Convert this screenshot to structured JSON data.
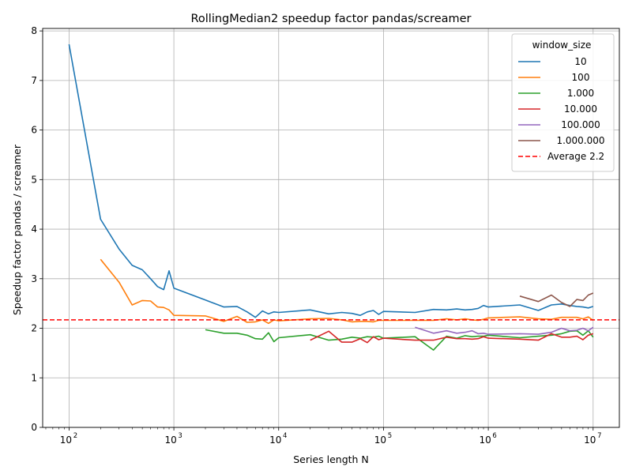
{
  "chart_data": {
    "type": "line",
    "title": "RollingMedian2 speedup factor pandas/screamer",
    "xlabel": "Series length N",
    "ylabel": "Speedup factor pandas / screamer",
    "xscale": "log",
    "xlim": [
      56,
      17800000
    ],
    "ylim": [
      0,
      8.05
    ],
    "grid": true,
    "legend_title": "window_size",
    "legend_position": "top-right",
    "x_ticks": [
      {
        "value": 100,
        "base": "10",
        "exp": "2"
      },
      {
        "value": 1000,
        "base": "10",
        "exp": "3"
      },
      {
        "value": 10000,
        "base": "10",
        "exp": "4"
      },
      {
        "value": 100000,
        "base": "10",
        "exp": "5"
      },
      {
        "value": 1000000,
        "base": "10",
        "exp": "6"
      },
      {
        "value": 10000000,
        "base": "10",
        "exp": "7"
      }
    ],
    "y_ticks": [
      "0",
      "1",
      "2",
      "3",
      "4",
      "5",
      "6",
      "7",
      "8"
    ],
    "series": [
      {
        "name": "10",
        "color": "#1f77b4",
        "x": [
          100,
          200,
          300,
          400,
          500,
          600,
          700,
          800,
          900,
          1000,
          2000,
          3000,
          4000,
          5000,
          6000,
          7000,
          8000,
          9000,
          10000,
          20000,
          30000,
          40000,
          50000,
          60000,
          70000,
          80000,
          90000,
          100000,
          200000,
          300000,
          400000,
          500000,
          600000,
          700000,
          800000,
          900000,
          1000000,
          2000000,
          3000000,
          4000000,
          5000000,
          6000000,
          7000000,
          8000000,
          9000000,
          10000000
        ],
        "y": [
          7.73,
          4.2,
          3.6,
          3.27,
          3.18,
          3.0,
          2.84,
          2.78,
          3.16,
          2.81,
          2.57,
          2.43,
          2.44,
          2.33,
          2.22,
          2.35,
          2.29,
          2.33,
          2.32,
          2.37,
          2.29,
          2.32,
          2.3,
          2.26,
          2.33,
          2.36,
          2.28,
          2.34,
          2.32,
          2.38,
          2.37,
          2.39,
          2.37,
          2.38,
          2.4,
          2.46,
          2.43,
          2.47,
          2.36,
          2.47,
          2.49,
          2.46,
          2.44,
          2.43,
          2.41,
          2.44
        ]
      },
      {
        "name": "100",
        "color": "#ff7f0e",
        "x": [
          200,
          300,
          400,
          500,
          600,
          700,
          800,
          900,
          1000,
          2000,
          3000,
          4000,
          5000,
          6000,
          7000,
          8000,
          9000,
          10000,
          20000,
          30000,
          40000,
          50000,
          60000,
          70000,
          80000,
          90000,
          100000,
          200000,
          300000,
          400000,
          500000,
          600000,
          700000,
          800000,
          900000,
          1000000,
          2000000,
          3000000,
          4000000,
          5000000,
          6000000,
          7000000,
          8000000,
          9000000,
          10000000
        ],
        "y": [
          3.39,
          2.93,
          2.47,
          2.56,
          2.55,
          2.43,
          2.42,
          2.37,
          2.26,
          2.25,
          2.14,
          2.24,
          2.12,
          2.13,
          2.17,
          2.1,
          2.17,
          2.15,
          2.19,
          2.2,
          2.17,
          2.13,
          2.14,
          2.14,
          2.13,
          2.16,
          2.16,
          2.16,
          2.16,
          2.19,
          2.17,
          2.19,
          2.17,
          2.16,
          2.18,
          2.21,
          2.23,
          2.19,
          2.18,
          2.22,
          2.22,
          2.22,
          2.19,
          2.23,
          2.16
        ]
      },
      {
        "name": "1.000",
        "color": "#2ca02c",
        "x": [
          2000,
          3000,
          4000,
          5000,
          6000,
          7000,
          8000,
          9000,
          10000,
          20000,
          30000,
          40000,
          50000,
          60000,
          70000,
          80000,
          90000,
          100000,
          200000,
          300000,
          400000,
          500000,
          600000,
          700000,
          800000,
          900000,
          1000000,
          2000000,
          3000000,
          4000000,
          5000000,
          6000000,
          7000000,
          8000000,
          9000000,
          10000000
        ],
        "y": [
          1.97,
          1.9,
          1.9,
          1.86,
          1.79,
          1.78,
          1.91,
          1.73,
          1.81,
          1.87,
          1.76,
          1.78,
          1.82,
          1.8,
          1.83,
          1.82,
          1.84,
          1.8,
          1.83,
          1.56,
          1.84,
          1.8,
          1.85,
          1.83,
          1.84,
          1.84,
          1.86,
          1.81,
          1.84,
          1.86,
          1.89,
          1.94,
          1.95,
          1.86,
          1.95,
          1.82
        ]
      },
      {
        "name": "10.000",
        "color": "#d62728",
        "x": [
          20000,
          30000,
          40000,
          50000,
          60000,
          70000,
          80000,
          90000,
          100000,
          200000,
          300000,
          400000,
          500000,
          600000,
          700000,
          800000,
          900000,
          1000000,
          2000000,
          3000000,
          4000000,
          5000000,
          6000000,
          7000000,
          8000000,
          9000000,
          10000000
        ],
        "y": [
          1.76,
          1.94,
          1.72,
          1.72,
          1.79,
          1.71,
          1.83,
          1.77,
          1.8,
          1.76,
          1.76,
          1.82,
          1.79,
          1.79,
          1.78,
          1.79,
          1.83,
          1.8,
          1.78,
          1.76,
          1.89,
          1.82,
          1.82,
          1.84,
          1.77,
          1.86,
          1.89
        ]
      },
      {
        "name": "100.000",
        "color": "#9467bd",
        "x": [
          200000,
          300000,
          400000,
          500000,
          600000,
          700000,
          800000,
          900000,
          1000000,
          2000000,
          3000000,
          4000000,
          5000000,
          6000000,
          7000000,
          8000000,
          9000000,
          10000000
        ],
        "y": [
          2.02,
          1.9,
          1.95,
          1.9,
          1.92,
          1.95,
          1.89,
          1.9,
          1.88,
          1.89,
          1.88,
          1.92,
          2.0,
          1.95,
          1.96,
          2.0,
          1.95,
          2.02
        ]
      },
      {
        "name": "1.000.000",
        "color": "#8c564b",
        "x": [
          2000000,
          3000000,
          4000000,
          5000000,
          6000000,
          7000000,
          8000000,
          9000000,
          10000000
        ],
        "y": [
          2.65,
          2.54,
          2.67,
          2.52,
          2.44,
          2.58,
          2.56,
          2.67,
          2.71
        ]
      }
    ],
    "reference_line": {
      "name": "Average 2.2",
      "value": 2.17,
      "color": "#ff0000",
      "style": "dashed"
    }
  }
}
